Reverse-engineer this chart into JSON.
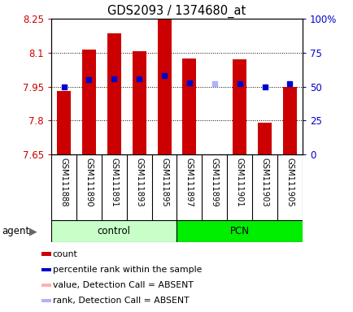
{
  "title": "GDS2093 / 1374680_at",
  "samples": [
    "GSM111888",
    "GSM111890",
    "GSM111891",
    "GSM111893",
    "GSM111895",
    "GSM111897",
    "GSM111899",
    "GSM111901",
    "GSM111903",
    "GSM111905"
  ],
  "bar_values": [
    7.93,
    8.115,
    8.185,
    8.105,
    8.25,
    8.075,
    7.65,
    8.07,
    7.79,
    7.95
  ],
  "bar_absent": [
    false,
    false,
    false,
    false,
    false,
    false,
    true,
    false,
    false,
    false
  ],
  "rank_values": [
    50,
    55,
    56,
    56,
    58,
    53,
    52,
    52,
    50,
    52
  ],
  "rank_absent": [
    false,
    false,
    false,
    false,
    false,
    false,
    true,
    false,
    false,
    false
  ],
  "ylim_left": [
    7.65,
    8.25
  ],
  "ylim_right": [
    0,
    100
  ],
  "yticks_left": [
    7.65,
    7.8,
    7.95,
    8.1,
    8.25
  ],
  "yticks_right": [
    0,
    25,
    50,
    75,
    100
  ],
  "ytick_labels_left": [
    "7.65",
    "7.8",
    "7.95",
    "8.1",
    "8.25"
  ],
  "ytick_labels_right": [
    "0",
    "25",
    "50",
    "75",
    "100%"
  ],
  "bar_color": "#cc0000",
  "bar_absent_color": "#ffb0b0",
  "rank_color": "#0000cc",
  "rank_absent_color": "#b0b0ff",
  "control_bg": "#c8ffc8",
  "pcn_bg": "#00ee00",
  "group_label_control": "control",
  "group_label_pcn": "PCN",
  "agent_label": "agent",
  "tick_color_left": "#cc0000",
  "tick_color_right": "#0000cc",
  "n_control": 5,
  "n_pcn": 5,
  "legend_items": [
    {
      "color": "#cc0000",
      "label": "count"
    },
    {
      "color": "#0000cc",
      "label": "percentile rank within the sample"
    },
    {
      "color": "#ffb0b0",
      "label": "value, Detection Call = ABSENT"
    },
    {
      "color": "#b0b0ff",
      "label": "rank, Detection Call = ABSENT"
    }
  ]
}
